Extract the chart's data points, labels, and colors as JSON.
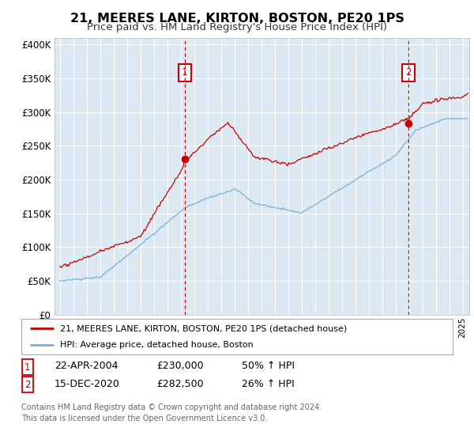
{
  "title": "21, MEERES LANE, KIRTON, BOSTON, PE20 1PS",
  "subtitle": "Price paid vs. HM Land Registry's House Price Index (HPI)",
  "title_fontsize": 11.5,
  "subtitle_fontsize": 9.5,
  "ylim": [
    0,
    410000
  ],
  "yticks": [
    0,
    50000,
    100000,
    150000,
    200000,
    250000,
    300000,
    350000,
    400000
  ],
  "xlim_left": 1994.6,
  "xlim_right": 2025.5,
  "background_color": "#dce8f2",
  "grid_color": "#ffffff",
  "red_color": "#cc0000",
  "blue_color": "#7ab0d4",
  "sale1_x": 2004.3,
  "sale1_y": 230000,
  "sale1_date": "22-APR-2004",
  "sale1_price": "£230,000",
  "sale1_pct": "50% ↑ HPI",
  "sale2_x": 2020.95,
  "sale2_y": 282500,
  "sale2_date": "15-DEC-2020",
  "sale2_price": "£282,500",
  "sale2_pct": "26% ↑ HPI",
  "legend_line1": "21, MEERES LANE, KIRTON, BOSTON, PE20 1PS (detached house)",
  "legend_line2": "HPI: Average price, detached house, Boston",
  "footer": "Contains HM Land Registry data © Crown copyright and database right 2024.\nThis data is licensed under the Open Government Licence v3.0."
}
